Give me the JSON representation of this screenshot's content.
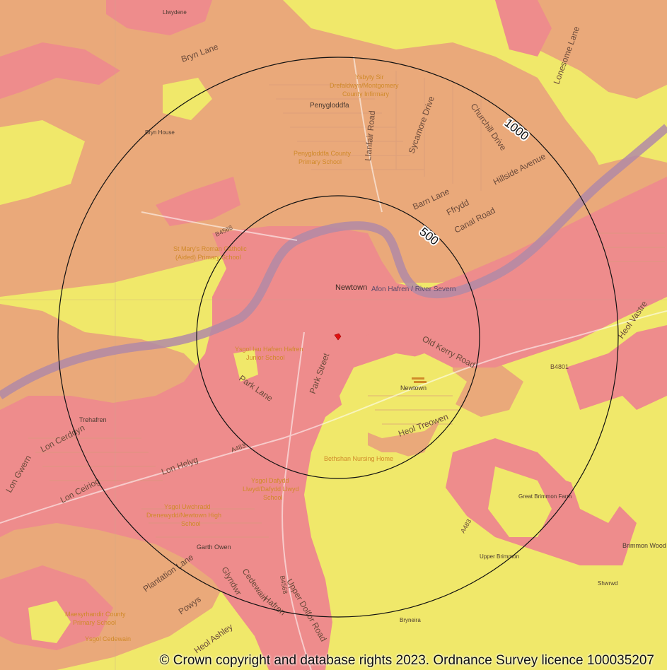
{
  "colors": {
    "background": "#f0e86a",
    "tan": "#eaa97a",
    "pink": "#ee8c8c",
    "river": "#b18aa6",
    "ring": "#111111",
    "marker": "#e01010"
  },
  "rings": [
    {
      "label": "500"
    },
    {
      "label": "1000"
    }
  ],
  "labels": {
    "llwydene": "Llwydene",
    "bryn_lane": "Bryn Lane",
    "ysbyty_1": "Ysbyty Sir",
    "ysbyty_2": "Drefaldwyn/Montgomery",
    "ysbyty_3": "County Infirmary",
    "penygloddfa": "Penygloddfa",
    "llanfair_road": "Llanfair Road",
    "sycamore_drive": "Sycamore Drive",
    "churchill_drive": "Churchill Drive",
    "lonesome_lane": "Lonesome Lane",
    "bryn_house": "Bryn House",
    "pcps_1": "Penygloddfa County",
    "pcps_2": "Primary School",
    "hillside_avenue": "Hillside Avenue",
    "barn_lane": "Barn Lane",
    "ffrydd": "Ffrydd",
    "canal_road": "Canal Road",
    "b4568": "B4568",
    "stmarys_1": "St Mary's Roman Catholic",
    "stmarys_2": "(Aided) Primary School",
    "newtown": "Newtown",
    "afon_hafren": "Afon Hafren / River Severn",
    "heol_vastre": "Heol Vastre",
    "ysgol_iau_1": "Ysgol Iau Hafren Hafren",
    "ysgol_iau_2": "Junior School",
    "old_kerry_road": "Old Kerry Road",
    "park_street": "Park Street",
    "park_lane": "Park Lane",
    "b4801": "B4801",
    "newtown_station": "Newtown",
    "lon_cerddyn": "Lon Cerddyn",
    "trehafren": "Trehafren",
    "heol_treowen": "Heol Treowen",
    "bethshan": "Bethshan Nursing Home",
    "a483_west": "A483",
    "lon_gwern": "Lon Gwern",
    "lon_helyg": "Lon Helyg",
    "lon_ceiriog": "Lon Ceiriog",
    "ysgol_dafydd_1": "Ysgol Dafydd",
    "ysgol_dafydd_2": "Llwyd/Dafydd Llwyd",
    "ysgol_dafydd_3": "School",
    "a483_east": "A483",
    "great_brimmon": "Great Brimmon Farm",
    "ysgol_uwchradd_1": "Ysgol Uwchradd",
    "ysgol_uwchradd_2": "Drenewydd/Newtown High",
    "ysgol_uwchradd_3": "School",
    "garth_owen": "Garth Owen",
    "brimmon_wood": "Brimmon Wood",
    "b4568_south": "B4568",
    "plantation_lane": "Plantation Lane",
    "cedewain": "Cedewain",
    "glyndwr": "Glyndwr",
    "powys": "Powys",
    "upper_dolfor_road": "Upper Dolfor Road",
    "upper_brimmon": "Upper Brimmon",
    "shwrwd": "Shwrwd",
    "maesyrhandir_1": "Maesyrhandir County",
    "maesyrhandir_2": "Primary School",
    "ysgol_cedewain": "Ysgol Cedewain",
    "bryneira": "Bryneira",
    "heol_ashley": "Heol Ashley",
    "hafren": "Hafren"
  },
  "copyright": "© Crown copyright and database rights 2023. Ordnance Survey licence 100035207"
}
